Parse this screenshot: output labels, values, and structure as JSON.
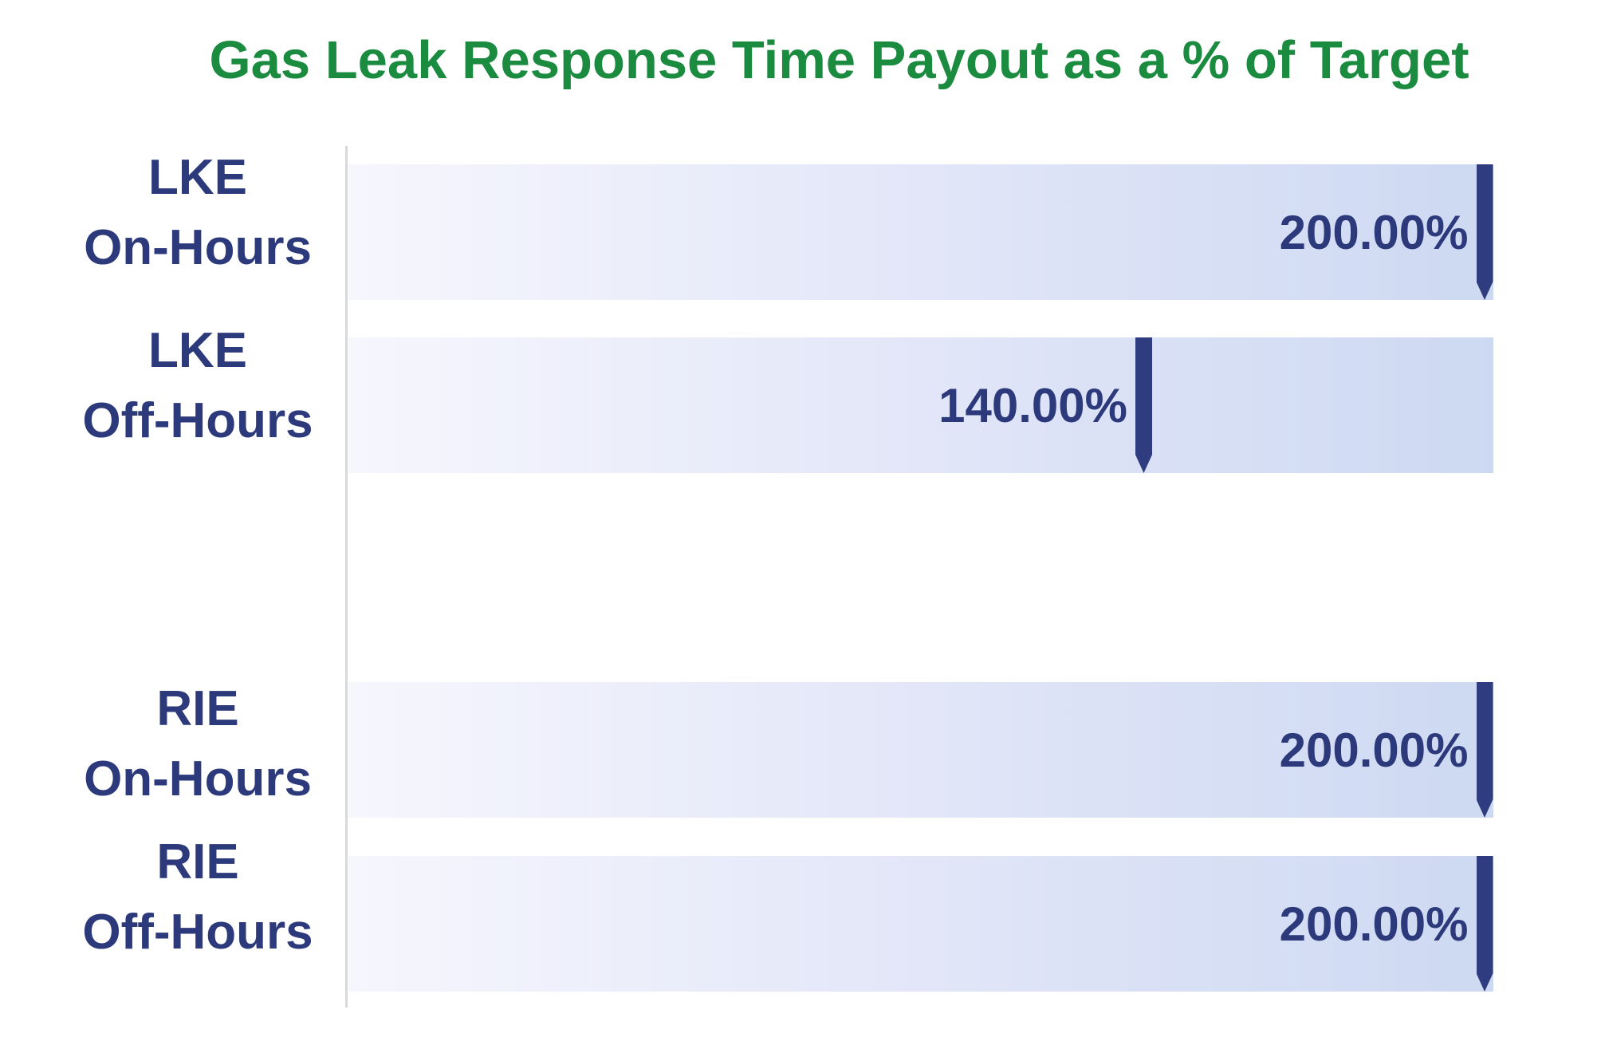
{
  "title": {
    "text": "Gas Leak Response Time Payout as a % of Target"
  },
  "chart_data": {
    "type": "bar",
    "orientation": "horizontal",
    "title": "Gas Leak Response Time Payout as a % of Target",
    "categories": [
      "LKE On-Hours",
      "LKE Off-Hours",
      "RIE On-Hours",
      "RIE Off-Hours"
    ],
    "category_lines": [
      [
        "LKE",
        "On-Hours"
      ],
      [
        "LKE",
        "Off-Hours"
      ],
      [
        "RIE",
        "On-Hours"
      ],
      [
        "RIE",
        "Off-Hours"
      ]
    ],
    "values": [
      200.0,
      140.0,
      200.0,
      200.0
    ],
    "value_labels": [
      "200.00%",
      "140.00%",
      "200.00%",
      "200.00%"
    ],
    "xlim": [
      0,
      200
    ],
    "gridlines": false,
    "x_axis_ticks_visible": false,
    "legend_position": "none",
    "marker_style": "navy pin pointing down at value position; background bar spans full 0-200% range with left-to-right light gradient",
    "layout_note": "empty row gap between LKE Off-Hours and RIE On-Hours",
    "colors": {
      "title_green": "#1a8b3f",
      "text_navy": "#2c3a7c",
      "pin_navy": "#2f3d80",
      "bar_gradient_left": "#f6f6fd",
      "bar_gradient_mid": "#e2e6f8",
      "bar_gradient_right": "#cdd9f2",
      "axis_line_gray": "#d9d9d9",
      "background": "#ffffff"
    }
  }
}
